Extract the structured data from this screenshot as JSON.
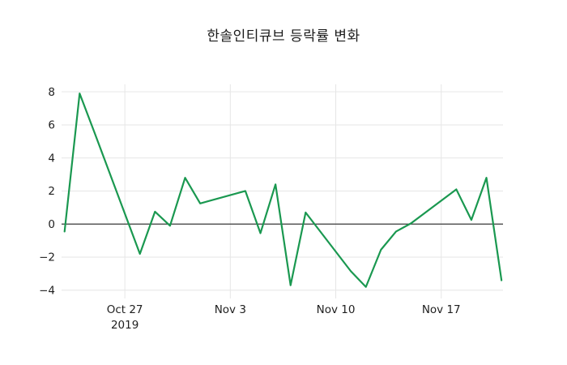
{
  "title": "한솔인티큐브 등락률 변화",
  "colors": {
    "line": "#1a9850",
    "grid": "#e6e6e6",
    "zero_line": "#3a3a3a",
    "text": "#1f1f1f",
    "background": "#ffffff"
  },
  "chart_data": {
    "type": "line",
    "title": "한솔인티큐브 등락률 변화",
    "series_name": "등락률",
    "x": [
      "Oct 23",
      "Oct 24",
      "Oct 25",
      "Oct 28",
      "Oct 29",
      "Oct 30",
      "Oct 31",
      "Nov 1",
      "Nov 4",
      "Nov 5",
      "Nov 6",
      "Nov 7",
      "Nov 8",
      "Nov 11",
      "Nov 12",
      "Nov 13",
      "Nov 14",
      "Nov 15",
      "Nov 18",
      "Nov 19",
      "Nov 20",
      "Nov 21"
    ],
    "x_day_offsets": [
      0,
      1,
      2,
      5,
      6,
      7,
      8,
      9,
      12,
      13,
      14,
      15,
      16,
      19,
      20,
      21,
      22,
      23,
      26,
      27,
      28,
      29
    ],
    "values": [
      -0.45,
      7.9,
      5.5,
      -1.8,
      0.75,
      -0.1,
      2.8,
      1.25,
      2.0,
      -0.55,
      2.4,
      -3.7,
      0.7,
      -2.85,
      -3.8,
      -1.55,
      -0.45,
      0.05,
      2.1,
      0.25,
      2.8,
      -3.4
    ],
    "xlabel": "",
    "ylabel": "",
    "ylim": [
      -4.5,
      8.45
    ],
    "xlim_days": [
      -0.2,
      29.1
    ],
    "yticks": [
      8,
      6,
      4,
      2,
      0,
      -2,
      -4
    ],
    "ytick_labels": [
      "8",
      "6",
      "4",
      "2",
      "0",
      "−2",
      "−4"
    ],
    "xticks": [
      {
        "day": 4,
        "label": "Oct 27",
        "sublabel": "2019"
      },
      {
        "day": 11,
        "label": "Nov 3",
        "sublabel": ""
      },
      {
        "day": 18,
        "label": "Nov 10",
        "sublabel": ""
      },
      {
        "day": 25,
        "label": "Nov 17",
        "sublabel": ""
      }
    ],
    "grid": true,
    "legend": false,
    "zero_line": true
  }
}
